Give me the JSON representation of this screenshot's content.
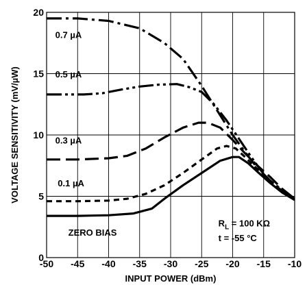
{
  "chart_data": {
    "type": "line",
    "xlabel": "INPUT POWER (dBm)",
    "ylabel": "VOLTAGE SENSITIVITY (mV/µW)",
    "xlim": [
      -50,
      -10
    ],
    "ylim": [
      0,
      20
    ],
    "x_ticks": [
      "-50",
      "-45",
      "-40",
      "-35",
      "-30",
      "-25",
      "-20",
      "-15",
      "-10"
    ],
    "y_ticks": [
      "0",
      "5",
      "10",
      "15",
      "20"
    ],
    "grid": true,
    "series": [
      {
        "name": "0.7 µA",
        "dash": "dash-dot",
        "points": [
          [
            -50,
            19.5
          ],
          [
            -45,
            19.5
          ],
          [
            -40,
            19.3
          ],
          [
            -35,
            18.7
          ],
          [
            -31,
            17.5
          ],
          [
            -28,
            16.2
          ],
          [
            -25,
            14.0
          ],
          [
            -22,
            11.6
          ],
          [
            -20,
            10.0
          ],
          [
            -18,
            8.6
          ],
          [
            -16,
            7.3
          ],
          [
            -14,
            6.3
          ],
          [
            -12,
            5.5
          ],
          [
            -10,
            4.8
          ]
        ]
      },
      {
        "name": "0.5 µA",
        "dash": "dash-dot-dot",
        "points": [
          [
            -50,
            13.3
          ],
          [
            -47,
            13.3
          ],
          [
            -44,
            13.3
          ],
          [
            -41,
            13.4
          ],
          [
            -38,
            13.7
          ],
          [
            -35,
            13.95
          ],
          [
            -32,
            14.1
          ],
          [
            -29,
            14.15
          ],
          [
            -27,
            13.9
          ],
          [
            -25,
            13.5
          ],
          [
            -23,
            12.5
          ],
          [
            -21,
            11.2
          ],
          [
            -19,
            9.7
          ],
          [
            -17,
            8.2
          ],
          [
            -15,
            6.8
          ],
          [
            -13,
            5.8
          ],
          [
            -11,
            5.1
          ],
          [
            -10,
            4.8
          ]
        ]
      },
      {
        "name": "0.3 µA",
        "dash": "long-dash",
        "points": [
          [
            -50,
            8.0
          ],
          [
            -45,
            8.0
          ],
          [
            -40,
            8.1
          ],
          [
            -37,
            8.3
          ],
          [
            -34,
            8.9
          ],
          [
            -31,
            9.8
          ],
          [
            -28,
            10.6
          ],
          [
            -25.5,
            11.0
          ],
          [
            -24,
            11.0
          ],
          [
            -22,
            10.6
          ],
          [
            -20,
            9.6
          ],
          [
            -18,
            8.5
          ],
          [
            -16,
            7.5
          ],
          [
            -14,
            6.6
          ],
          [
            -12,
            5.6
          ],
          [
            -10,
            4.8
          ]
        ]
      },
      {
        "name": "0.1 µA",
        "dash": "short-dash",
        "points": [
          [
            -50,
            4.6
          ],
          [
            -45,
            4.6
          ],
          [
            -40,
            4.65
          ],
          [
            -37,
            4.8
          ],
          [
            -34,
            5.2
          ],
          [
            -31,
            5.9
          ],
          [
            -28,
            6.9
          ],
          [
            -25,
            8.0
          ],
          [
            -22.5,
            8.9
          ],
          [
            -21,
            9.1
          ],
          [
            -19.5,
            8.9
          ],
          [
            -18,
            8.2
          ],
          [
            -16,
            7.2
          ],
          [
            -14,
            6.2
          ],
          [
            -12,
            5.4
          ],
          [
            -10,
            4.8
          ]
        ]
      },
      {
        "name": "ZERO BIAS",
        "dash": "solid",
        "points": [
          [
            -50,
            3.4
          ],
          [
            -45,
            3.4
          ],
          [
            -40,
            3.45
          ],
          [
            -36,
            3.6
          ],
          [
            -33,
            4.0
          ],
          [
            -31,
            4.8
          ],
          [
            -28,
            5.9
          ],
          [
            -25,
            6.9
          ],
          [
            -22,
            7.9
          ],
          [
            -20,
            8.2
          ],
          [
            -19,
            8.2
          ],
          [
            -17.5,
            7.7
          ],
          [
            -16,
            7.0
          ],
          [
            -14,
            6.1
          ],
          [
            -12,
            5.3
          ],
          [
            -10,
            4.7
          ]
        ]
      }
    ],
    "annotations": {
      "condition_1_main": "R",
      "condition_1_sub": "L",
      "condition_1_rest": " = 100 KΩ",
      "condition_2": "t = -55 °C"
    }
  }
}
